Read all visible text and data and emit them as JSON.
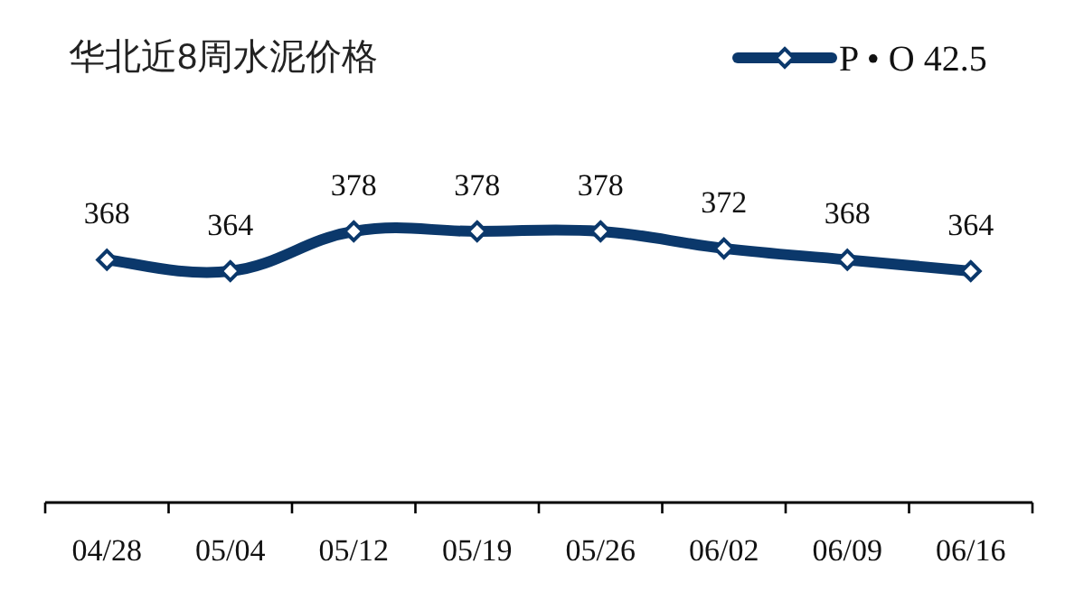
{
  "chart_data": {
    "type": "line",
    "title": "华北近8周水泥价格",
    "categories": [
      "04/28",
      "05/04",
      "05/12",
      "05/19",
      "05/26",
      "06/02",
      "06/09",
      "06/16"
    ],
    "series": [
      {
        "name": "P • O 42.5",
        "color": "#0b386b",
        "values": [
          368,
          364,
          378,
          378,
          378,
          372,
          368,
          364
        ]
      }
    ],
    "tick_labels": "x",
    "data_labels": true,
    "legend": "top right",
    "marker": "diamond"
  }
}
